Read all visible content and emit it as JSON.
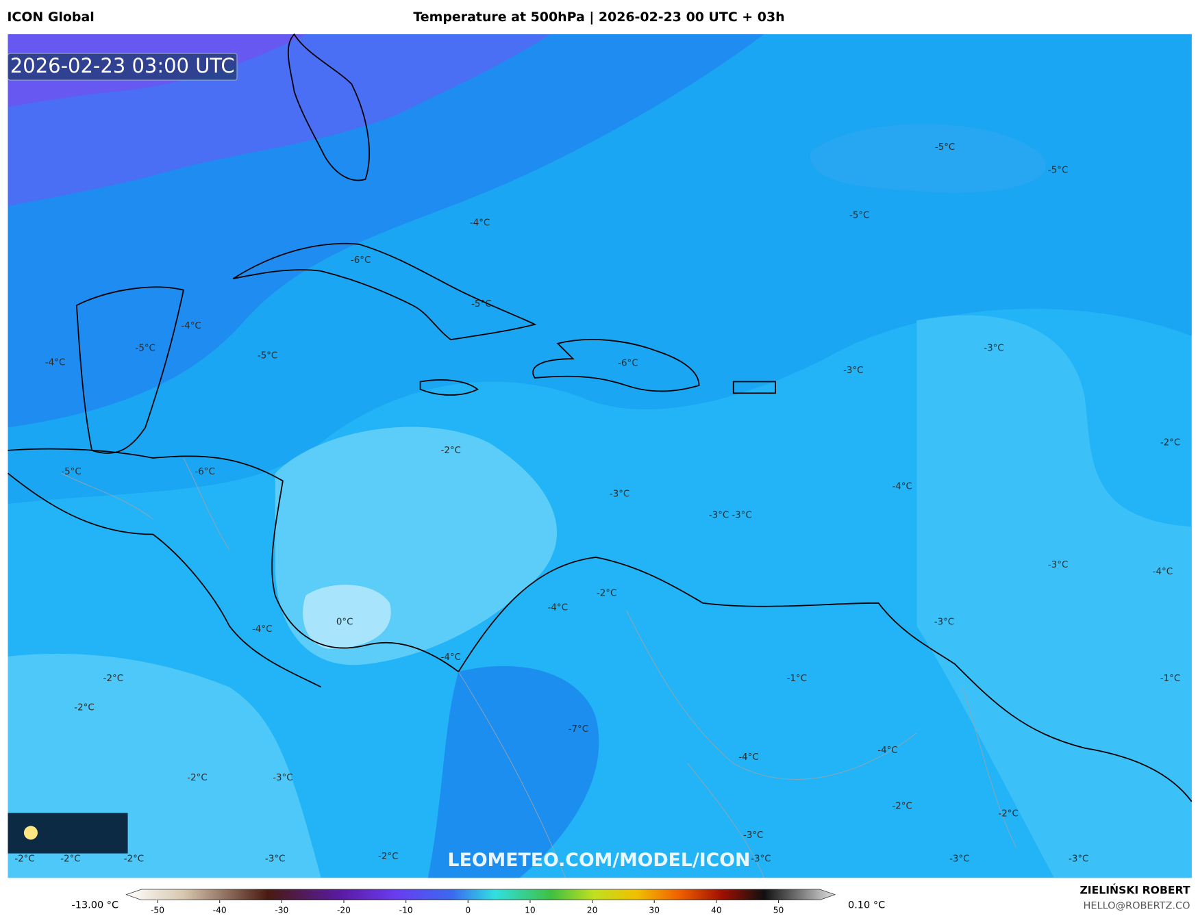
{
  "header": {
    "model": "ICON Global",
    "title": "Temperature at 500hPa | 2026-02-23 00 UTC + 03h"
  },
  "map": {
    "timestamp": "2026-02-23 03:00 UTC",
    "watermark": "LEOMETEO.COM/MODEL/ICON",
    "contour_labels": [
      "-5°C",
      "-5°C",
      "-5°C",
      "-4°C",
      "-6°C",
      "-4°C",
      "-5°C",
      "-5°C",
      "-4°C",
      "-5°C",
      "-6°C",
      "-3°C",
      "-3°C",
      "-2°C",
      "-2°C",
      "-5°C",
      "-6°C",
      "-3°C",
      "-4°C",
      "-3°C",
      "-3°C",
      "-3°C",
      "-4°C",
      "-2°C",
      "-4°C",
      "-3°C",
      "0°C",
      "-4°C",
      "-4°C",
      "-1°C",
      "-1°C",
      "-2°C",
      "-2°C",
      "-7°C",
      "-4°C",
      "-4°C",
      "-2°C",
      "-3°C",
      "-2°C",
      "-2°C",
      "-3°C",
      "-2°C",
      "-2°C",
      "-2°C",
      "-3°C",
      "-2°C",
      "-3°C",
      "-3°C",
      "-3°C"
    ]
  },
  "colorbar": {
    "min_label": "-13.00 °C",
    "max_label": "0.10 °C",
    "ticks": [
      -50,
      -40,
      -30,
      -20,
      -10,
      0,
      10,
      20,
      30,
      40,
      50
    ]
  },
  "footer": {
    "author": "ZIELIŃSKI ROBERT",
    "email": "HELLO@ROBERTZ.CO"
  }
}
